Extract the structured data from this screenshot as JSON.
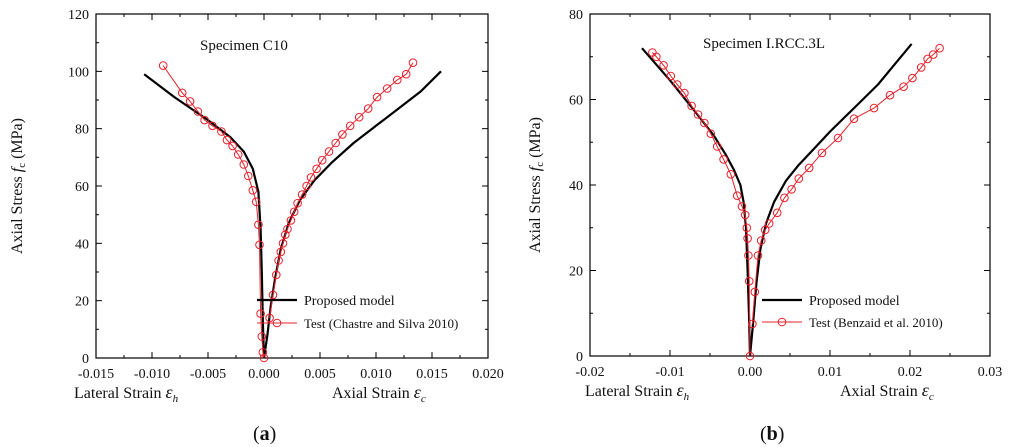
{
  "chart_data": [
    {
      "type": "line",
      "panel_label": "(a)",
      "annotation": "Specimen C10",
      "ylabel": "Axial Stress",
      "ylabel_symbol": "f",
      "ylabel_sub": "c",
      "ylabel_unit": "(MPa)",
      "xlabel_left": "Lateral  Strain",
      "xlabel_left_symbol": "ε",
      "xlabel_left_sub": "h",
      "xlabel_right": "Axial Strain",
      "xlabel_right_symbol": "ε",
      "xlabel_right_sub": "c",
      "xlim": [
        -0.015,
        0.02
      ],
      "ylim": [
        0,
        120
      ],
      "xticks": [
        -0.015,
        -0.01,
        -0.005,
        0.0,
        0.005,
        0.01,
        0.015,
        0.02
      ],
      "xtick_labels": [
        "-0.015",
        "-0.010",
        "-0.005",
        "0.000",
        "0.005",
        "0.010",
        "0.015",
        "0.020"
      ],
      "yticks": [
        0,
        20,
        40,
        60,
        80,
        100,
        120
      ],
      "ytick_labels": [
        "0",
        "20",
        "40",
        "60",
        "80",
        "100",
        "120"
      ],
      "legend_position": "bottom-right",
      "series": [
        {
          "name": "Proposed model",
          "color": "#000000",
          "marker": "none",
          "x": [
            -0.0107,
            -0.008,
            -0.005,
            -0.003,
            -0.0018,
            -0.001,
            -0.0005,
            -0.0003,
            -0.0002,
            -0.0001,
            0.0
          ],
          "y": [
            99,
            91,
            83,
            77,
            72,
            66,
            58,
            45,
            30,
            12,
            0
          ],
          "x2": [
            0.0,
            0.0003,
            0.0006,
            0.001,
            0.0015,
            0.0022,
            0.0032,
            0.0045,
            0.006,
            0.008,
            0.01,
            0.012,
            0.014,
            0.0158
          ],
          "y2": [
            0,
            8,
            18,
            28,
            38,
            47,
            55,
            62,
            68,
            75,
            81,
            87,
            93,
            100
          ]
        },
        {
          "name": "Test (Chastre and Silva 2010)",
          "color": "#e8202a",
          "marker": "circle",
          "x": [
            -0.009,
            -0.0073,
            -0.0066,
            -0.0059,
            -0.0053,
            -0.0046,
            -0.0038,
            -0.0033,
            -0.0028,
            -0.0023,
            -0.0018,
            -0.0014,
            -0.001,
            -0.0007,
            -0.0005,
            -0.0004,
            -0.0003,
            -0.0002,
            -0.0001,
            0.0
          ],
          "y": [
            102,
            92.5,
            89.5,
            86,
            83,
            81,
            79,
            76,
            74,
            71,
            67.5,
            63.5,
            58.5,
            54.5,
            46.5,
            39.5,
            15.5,
            7.5,
            2,
            0
          ],
          "x2": [
            0.0005,
            0.0008,
            0.0011,
            0.0013,
            0.0015,
            0.0017,
            0.0019,
            0.0021,
            0.0024,
            0.0027,
            0.003,
            0.0034,
            0.0038,
            0.0042,
            0.0047,
            0.0052,
            0.0058,
            0.0064,
            0.007,
            0.0077,
            0.0085,
            0.0093,
            0.0101,
            0.011,
            0.0119,
            0.0127,
            0.0133
          ],
          "y2": [
            14,
            22,
            29,
            34,
            37,
            40,
            43,
            45,
            48,
            51,
            54,
            57,
            60,
            63,
            66,
            69,
            72,
            75,
            78,
            81,
            84,
            87,
            91,
            94,
            97,
            99,
            103
          ]
        }
      ]
    },
    {
      "type": "line",
      "panel_label": "(b)",
      "annotation": "Specimen I.RCC.3L",
      "ylabel": "Axial Stress",
      "ylabel_symbol": "f",
      "ylabel_sub": "c",
      "ylabel_unit": "(MPa)",
      "xlabel_left": "Lateral  Strain",
      "xlabel_left_symbol": "ε",
      "xlabel_left_sub": "h",
      "xlabel_right": "Axial Strain",
      "xlabel_right_symbol": "ε",
      "xlabel_right_sub": "c",
      "xlim": [
        -0.02,
        0.03
      ],
      "ylim": [
        0,
        80
      ],
      "xticks": [
        -0.02,
        -0.01,
        0.0,
        0.01,
        0.02,
        0.03
      ],
      "xtick_labels": [
        "-0.02",
        "-0.01",
        "0.00",
        "0.01",
        "0.02",
        "0.03"
      ],
      "yticks": [
        0,
        20,
        40,
        60,
        80
      ],
      "ytick_labels": [
        "0",
        "20",
        "40",
        "60",
        "80"
      ],
      "legend_position": "bottom-right",
      "series": [
        {
          "name": "Proposed model",
          "color": "#000000",
          "marker": "none",
          "x": [
            -0.0135,
            -0.01,
            -0.007,
            -0.0045,
            -0.003,
            -0.002,
            -0.0012,
            -0.0008,
            -0.0005,
            -0.0003,
            -0.0001,
            0.0
          ],
          "y": [
            72,
            64.5,
            57.5,
            51.5,
            47,
            43.5,
            40,
            36,
            30,
            20,
            8,
            0
          ],
          "x2": [
            0.0,
            0.0004,
            0.0008,
            0.0013,
            0.002,
            0.003,
            0.0045,
            0.006,
            0.008,
            0.01,
            0.013,
            0.016,
            0.0202
          ],
          "y2": [
            0,
            8,
            17,
            25,
            31,
            36,
            41,
            44.5,
            48.5,
            52.5,
            58,
            63.5,
            73
          ]
        },
        {
          "name": "Test (Benzaid et al. 2010)",
          "color": "#e8202a",
          "marker": "circle",
          "x": [
            -0.0122,
            -0.0117,
            -0.0108,
            -0.0099,
            -0.0091,
            -0.0082,
            -0.0073,
            -0.0065,
            -0.0057,
            -0.0049,
            -0.0041,
            -0.0033,
            -0.0024,
            -0.0016,
            -0.001,
            -0.0006,
            -0.0004,
            -0.0003,
            -0.0002,
            -0.0001,
            0.0
          ],
          "y": [
            71,
            70,
            68,
            65.5,
            63.5,
            61.5,
            58.5,
            56.5,
            54.5,
            52,
            49,
            46,
            42.5,
            37.5,
            35,
            33,
            30,
            27.5,
            23.5,
            17.5,
            0
          ],
          "x2": [
            0.0003,
            0.0006,
            0.001,
            0.0014,
            0.0019,
            0.0024,
            0.0034,
            0.0043,
            0.0052,
            0.0061,
            0.0074,
            0.009,
            0.011,
            0.013,
            0.0155,
            0.0175,
            0.0192,
            0.0203,
            0.0214,
            0.0222,
            0.0229,
            0.0237
          ],
          "y2": [
            7.5,
            15,
            23.5,
            27,
            29.5,
            31,
            33.5,
            37,
            39,
            41.5,
            44,
            47.5,
            51,
            55.5,
            58,
            61,
            63,
            65,
            67.5,
            69.5,
            70.5,
            72
          ]
        }
      ]
    }
  ]
}
